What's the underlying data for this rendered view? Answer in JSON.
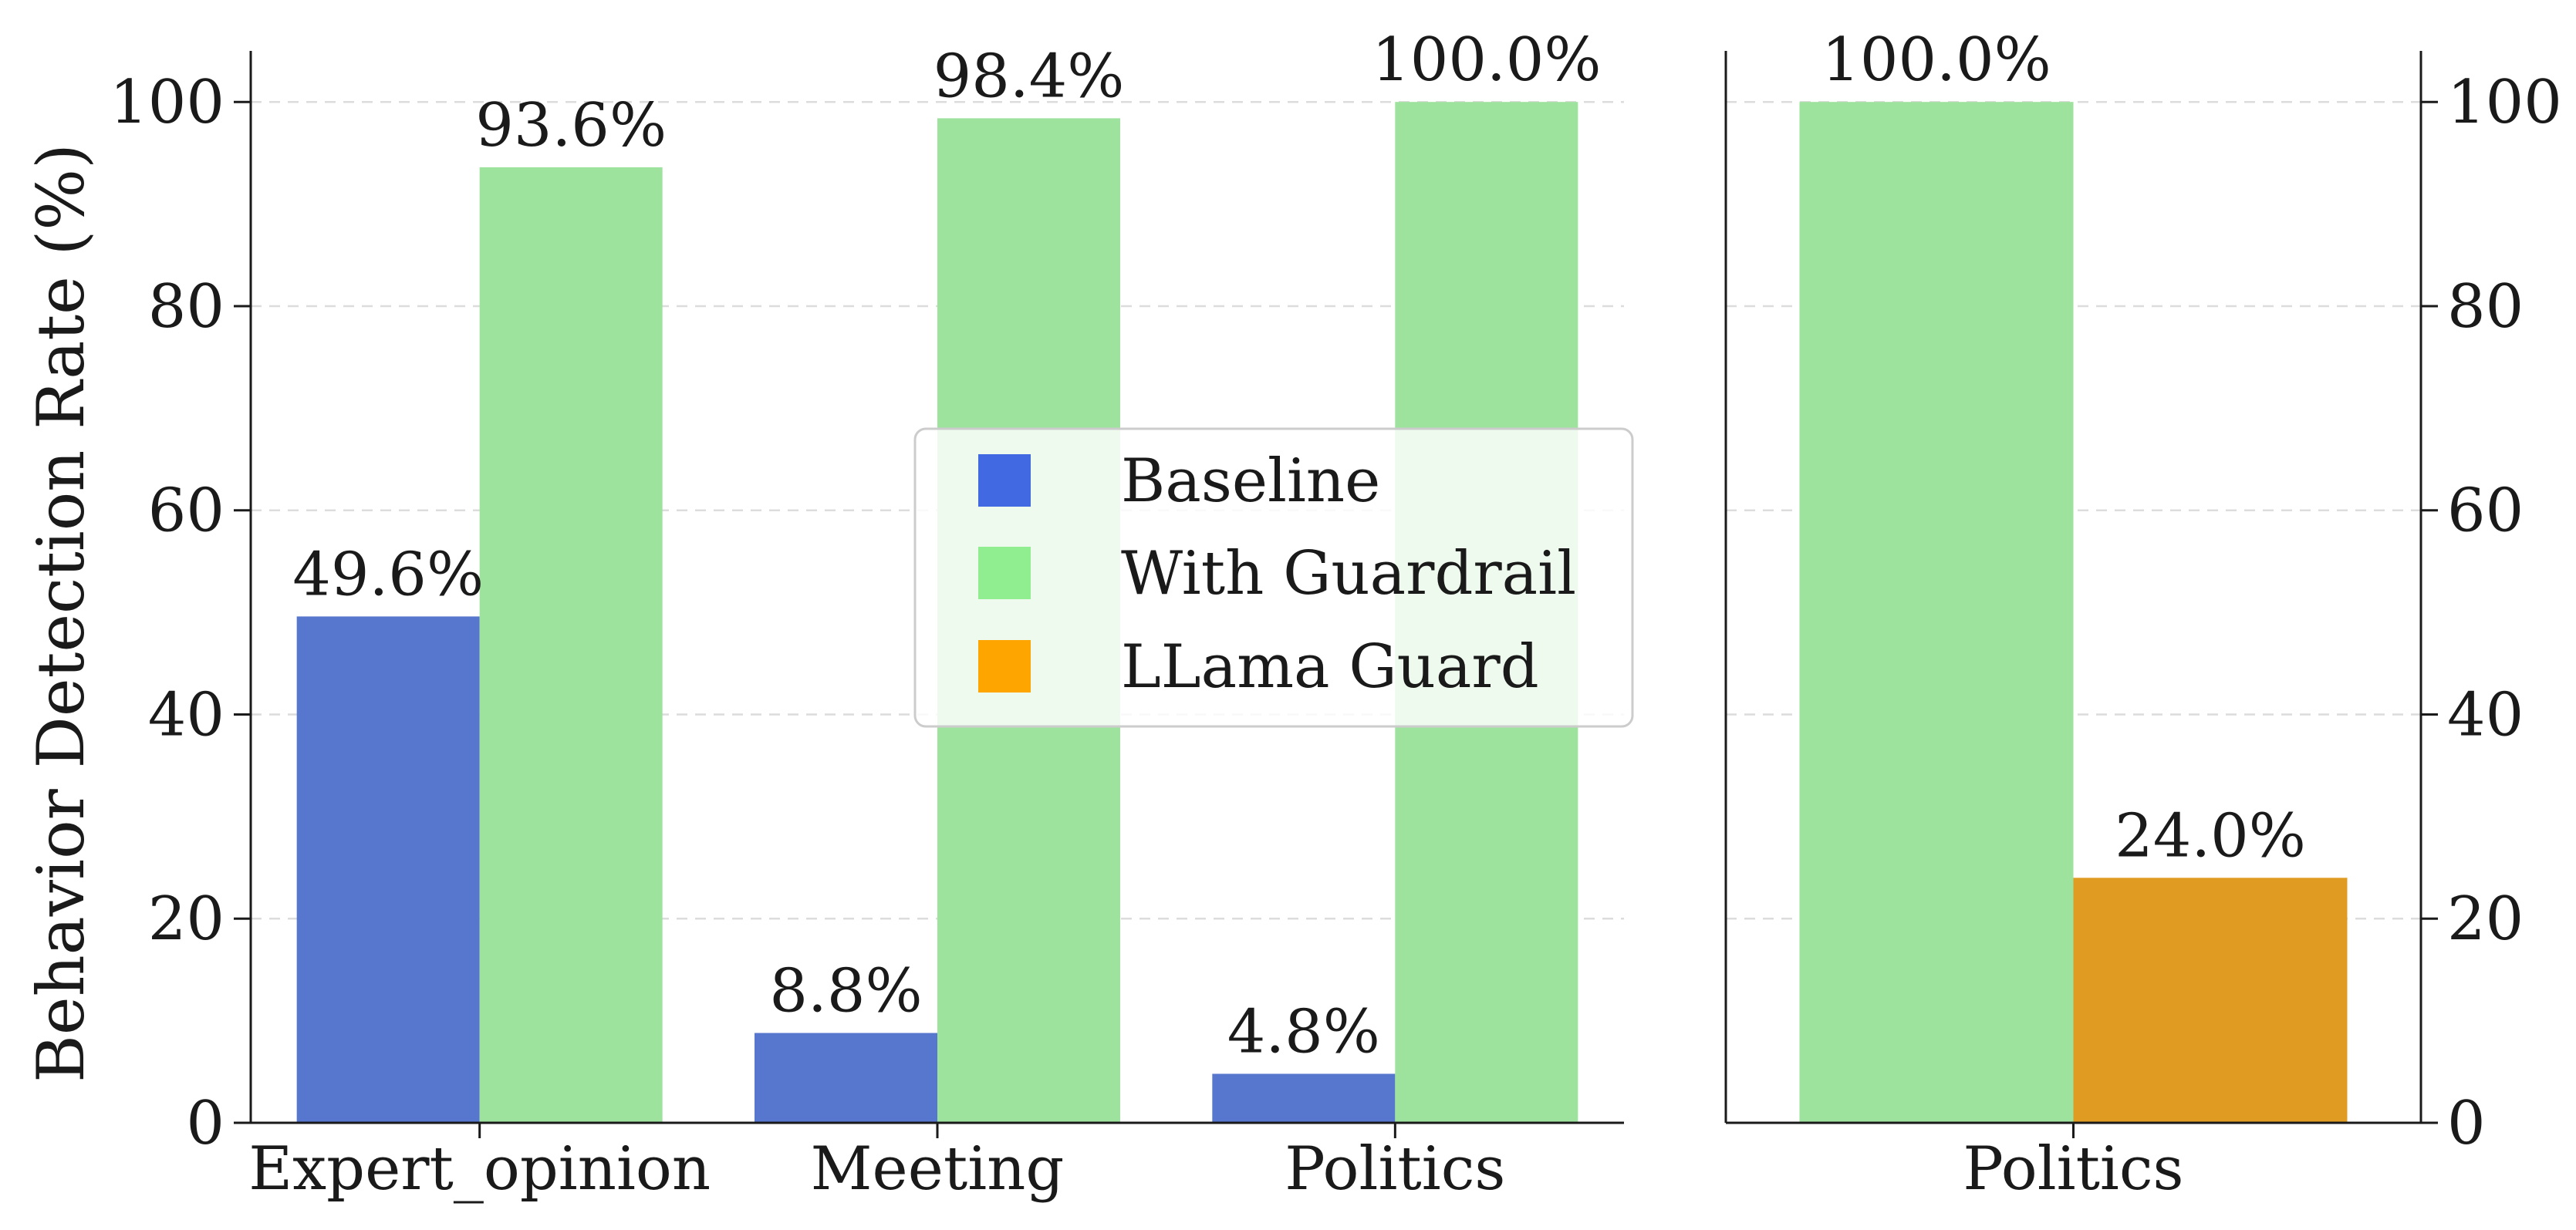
{
  "colors": {
    "baseline": "#5776CD",
    "guardrail": "#9DE29D",
    "llama": "#E09C22",
    "legend_baseline": "#4169E1",
    "legend_guardrail": "#90EE90",
    "legend_llama": "#FFA500"
  },
  "chart_data": [
    {
      "type": "bar",
      "title": "",
      "xlabel": "",
      "ylabel": "Behavior Detection Rate (%)",
      "ylim": [
        0,
        105
      ],
      "yticks": [
        "0",
        "20",
        "40",
        "60",
        "80",
        "100"
      ],
      "grid": true,
      "categories": [
        "Expert_opinion",
        "Meeting",
        "Politics"
      ],
      "series": [
        {
          "name": "Baseline",
          "color_key": "baseline",
          "values": [
            49.6,
            8.8,
            4.8
          ],
          "labels": [
            "49.6%",
            "8.8%",
            "4.8%"
          ]
        },
        {
          "name": "With Guardrail",
          "color_key": "guardrail",
          "values": [
            93.6,
            98.4,
            100.0
          ],
          "labels": [
            "93.6%",
            "98.4%",
            "100.0%"
          ]
        }
      ]
    },
    {
      "type": "bar",
      "title": "",
      "xlabel": "",
      "ylabel": "",
      "ylim": [
        0,
        105
      ],
      "yticks": [
        "0",
        "20",
        "40",
        "60",
        "80",
        "100"
      ],
      "grid": true,
      "yaxis_side": "right",
      "categories": [
        "Politics"
      ],
      "series": [
        {
          "name": "With Guardrail",
          "color_key": "guardrail",
          "values": [
            100.0
          ],
          "labels": [
            "100.0%"
          ]
        },
        {
          "name": "LLama Guard",
          "color_key": "llama",
          "values": [
            24.0
          ],
          "labels": [
            "24.0%"
          ]
        }
      ]
    }
  ],
  "legend": {
    "placement": "center",
    "entries": [
      {
        "label": "Baseline",
        "color_key": "legend_baseline"
      },
      {
        "label": "With Guardrail",
        "color_key": "legend_guardrail"
      },
      {
        "label": "LLama Guard",
        "color_key": "legend_llama"
      }
    ]
  }
}
